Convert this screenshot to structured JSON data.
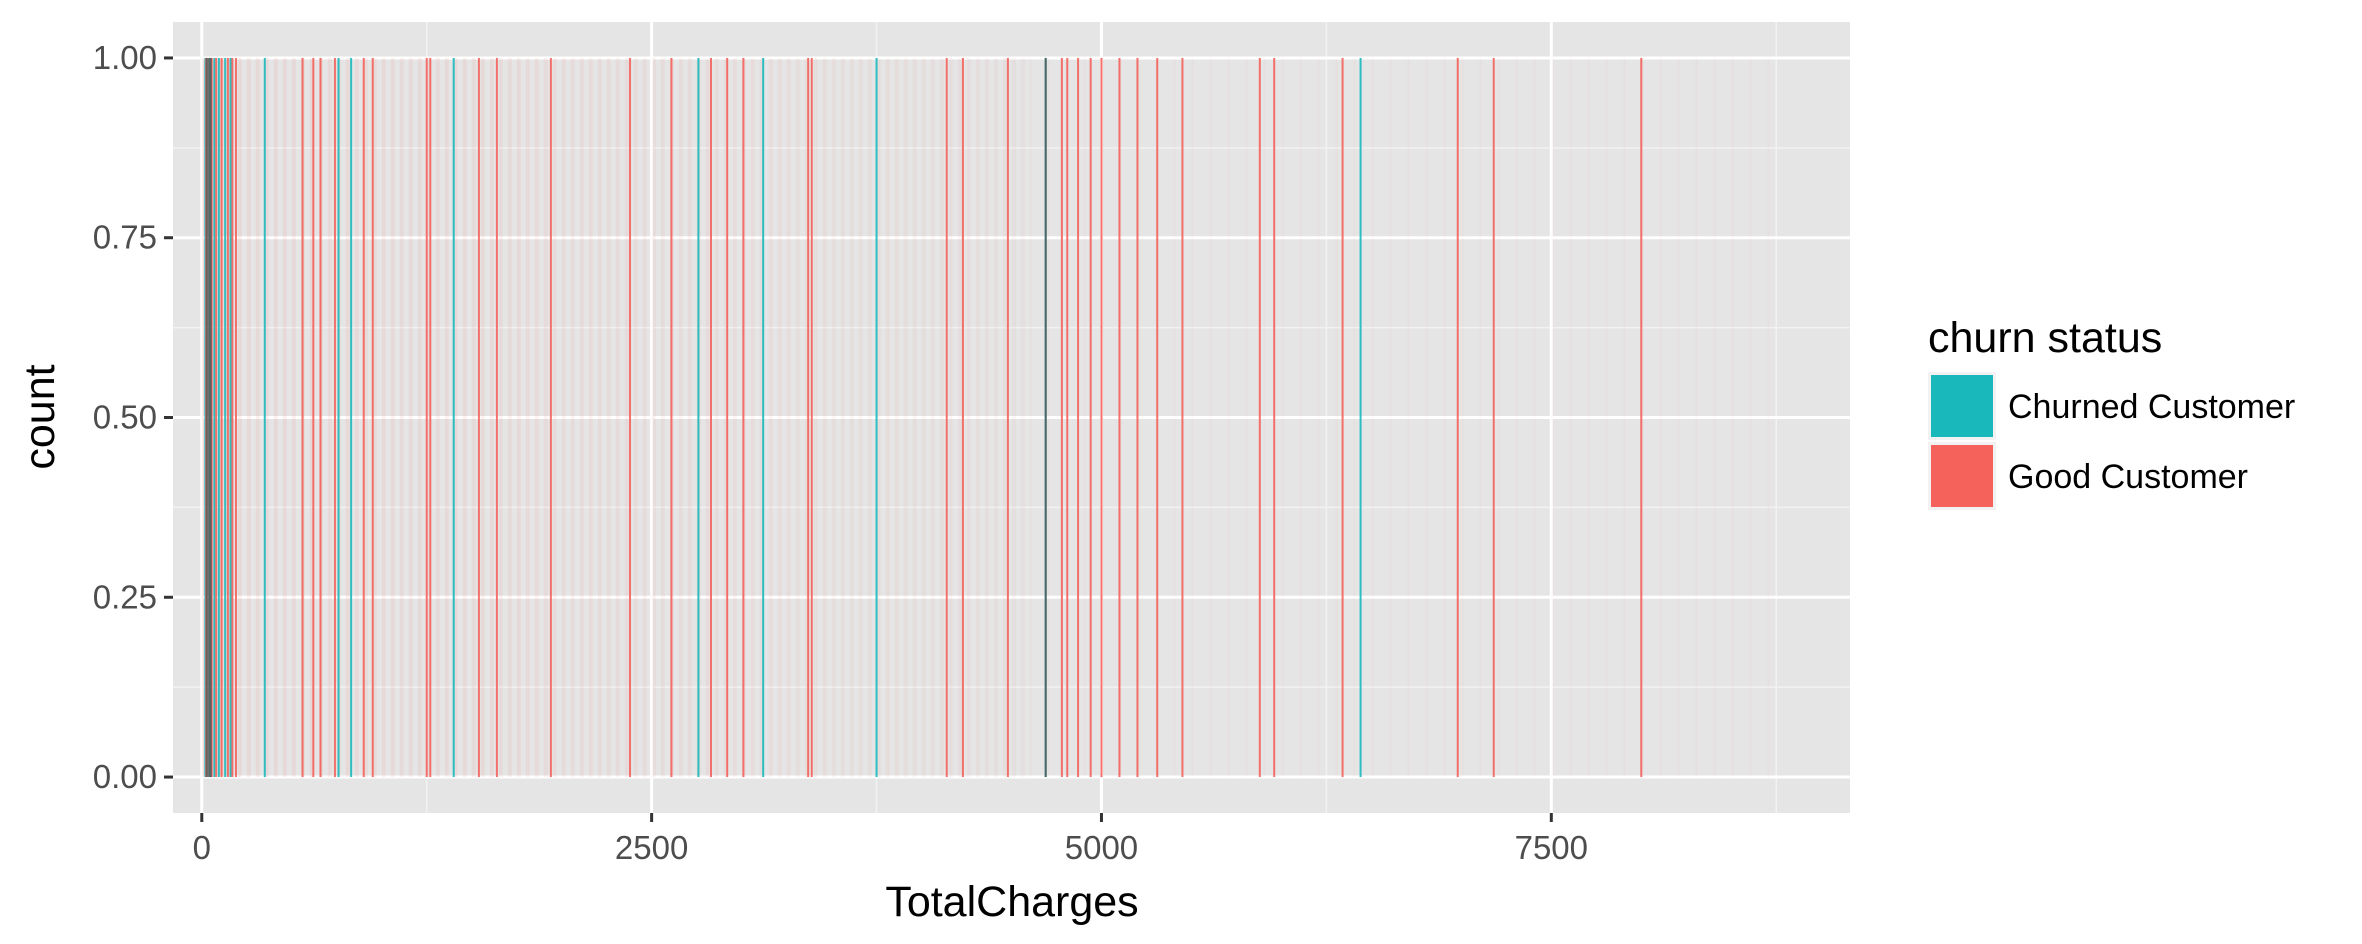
{
  "chart_data": {
    "type": "bar",
    "title": "",
    "xlabel": "TotalCharges",
    "ylabel": "count",
    "xlim": [
      -160,
      9160
    ],
    "ylim": [
      -0.05,
      1.05
    ],
    "x_ticks": [
      0,
      2500,
      5000,
      7500
    ],
    "x_tick_labels": [
      "0",
      "2500",
      "5000",
      "7500"
    ],
    "y_ticks": [
      0,
      0.25,
      0.5,
      0.75,
      1.0
    ],
    "y_tick_labels": [
      "0.00",
      "0.25",
      "0.50",
      "0.75",
      "1.00"
    ],
    "grid": true,
    "background": "#e5e5e5",
    "legend": {
      "title": "churn status",
      "placement": "right",
      "entries": [
        {
          "label": "Churned Customer",
          "color": "#19b8bb"
        },
        {
          "label": "Good Customer",
          "color": "#f4625b"
        }
      ]
    },
    "series": [
      {
        "key": "churned",
        "color": "#19b8bb",
        "count_value": 1,
        "x": [
          20,
          45,
          70,
          95,
          130,
          160,
          350,
          760,
          830,
          1400,
          2760,
          3120,
          3750,
          4690,
          6440
        ]
      },
      {
        "key": "good",
        "color": "#f4625b",
        "count_value": 1,
        "x": [
          25,
          55,
          80,
          110,
          145,
          170,
          190,
          560,
          620,
          660,
          740,
          900,
          950,
          1250,
          1270,
          1540,
          1640,
          1940,
          2380,
          2610,
          2830,
          2920,
          3010,
          3370,
          3390,
          4140,
          4230,
          4480,
          4780,
          4810,
          4870,
          4940,
          5000,
          5100,
          5200,
          5310,
          5450,
          5880,
          5960,
          6340,
          6980,
          7180,
          8000
        ]
      }
    ]
  }
}
